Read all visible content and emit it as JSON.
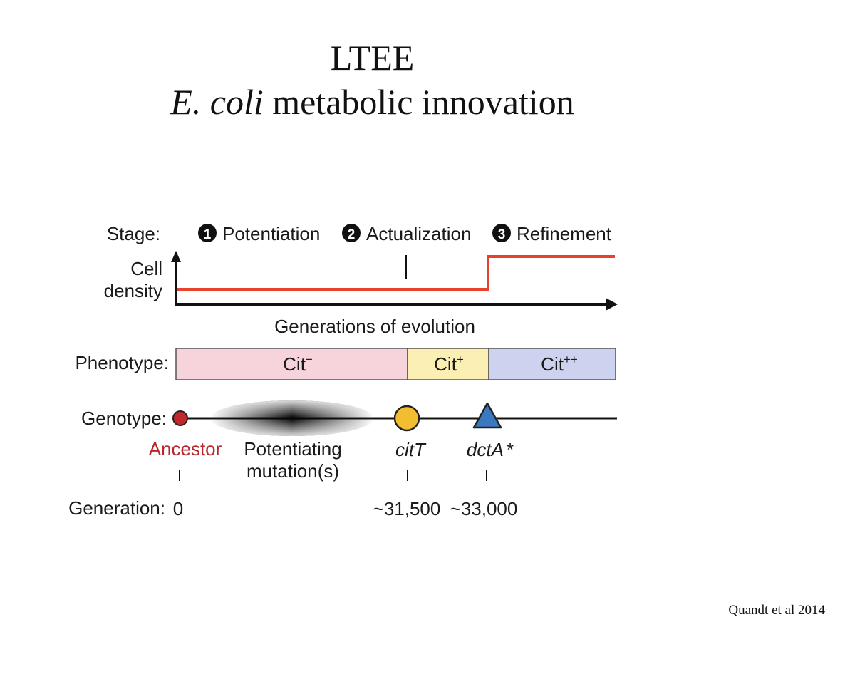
{
  "slide": {
    "title": "LTEE",
    "subtitle_italic": "E. coli",
    "subtitle_rest": " metabolic innovation",
    "citation": "Quandt et al 2014"
  },
  "figure": {
    "stage_label": "Stage:",
    "stages": [
      {
        "number": "1",
        "label": "Potentiation"
      },
      {
        "number": "2",
        "label": "Actualization"
      },
      {
        "number": "3",
        "label": "Refinement"
      }
    ],
    "y_axis_label_line1": "Cell",
    "y_axis_label_line2": "density",
    "x_axis_label": "Generations of evolution",
    "phenotype_label": "Phenotype:",
    "phenotypes": [
      {
        "base": "Cit",
        "sup": "−",
        "color": "#f7d3dc"
      },
      {
        "base": "Cit",
        "sup": "+",
        "color": "#fbefb4"
      },
      {
        "base": "Cit",
        "sup": "++",
        "color": "#cdd3ee"
      }
    ],
    "genotype_label": "Genotype:",
    "ancestor_label": "Ancestor",
    "potentiating_line1": "Potentiating",
    "potentiating_line2": "mutation(s)",
    "citT_label": "citT",
    "dctA_label": "dctA",
    "dctA_suffix": "*",
    "generation_label": "Generation:",
    "generation_values": [
      "0",
      "~31,500",
      "~33,000"
    ],
    "colors": {
      "density_line": "#e8412c",
      "ancestor": "#c0282d",
      "citT": "#f3bd32",
      "dctA": "#3a78c0"
    }
  }
}
